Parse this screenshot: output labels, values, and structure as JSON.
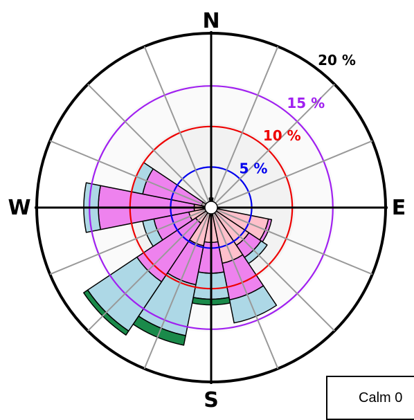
{
  "chart_data": {
    "type": "windrose",
    "directions": [
      "N",
      "NNE",
      "NE",
      "ENE",
      "E",
      "ESE",
      "SE",
      "SSE",
      "S",
      "SSW",
      "SW",
      "WSW",
      "W",
      "WNW",
      "NW",
      "NNW"
    ],
    "cardinal_labels": {
      "N": "N",
      "E": "E",
      "S": "S",
      "W": "W"
    },
    "rings": [
      {
        "value": 5,
        "label": "5 %",
        "color": "#0000ee"
      },
      {
        "value": 10,
        "label": "10 %",
        "color": "#ee0000"
      },
      {
        "value": 15,
        "label": "15 %",
        "color": "#a020f0"
      },
      {
        "value": 20,
        "label": "20 %",
        "color": "#000000"
      }
    ],
    "max_percent": 21.5,
    "bin_colors": [
      "#c8a000",
      "#ffc0cb",
      "#ee82ee",
      "#add8e6",
      "#1a8a4a"
    ],
    "cumulative_percent": [
      [
        0.2,
        0.4,
        1.0,
        1.2,
        1.2
      ],
      [
        0.0,
        0.1,
        0.2,
        0.2,
        0.2
      ],
      [
        0.0,
        0.1,
        0.1,
        0.1,
        0.1
      ],
      [
        0.0,
        0.1,
        0.1,
        0.1,
        0.1
      ],
      [
        0.1,
        0.4,
        0.5,
        0.5,
        0.5
      ],
      [
        0.3,
        7.2,
        7.6,
        7.6,
        7.6
      ],
      [
        0.3,
        5.6,
        7.4,
        8.3,
        8.3
      ],
      [
        0.8,
        7.0,
        11.6,
        14.5,
        14.5
      ],
      [
        0.6,
        4.3,
        8.1,
        11.3,
        12.0
      ],
      [
        0.5,
        4.8,
        9.7,
        16.1,
        17.3
      ],
      [
        0.2,
        2.3,
        11.0,
        18.3,
        18.9
      ],
      [
        0.2,
        2.8,
        7.2,
        8.6,
        8.6
      ],
      [
        0.1,
        2.1,
        13.9,
        15.7,
        15.7
      ],
      [
        0.1,
        1.2,
        8.6,
        10.0,
        10.0
      ],
      [
        0.1,
        0.3,
        0.4,
        0.4,
        0.4
      ],
      [
        0.1,
        0.1,
        0.2,
        0.2,
        0.2
      ]
    ],
    "calm": "Calm 0"
  },
  "colors": {
    "spoke": "#999999",
    "outline": "#000000",
    "bg_inner": "#f2f2f2",
    "bg_outer": "#fafafa"
  }
}
